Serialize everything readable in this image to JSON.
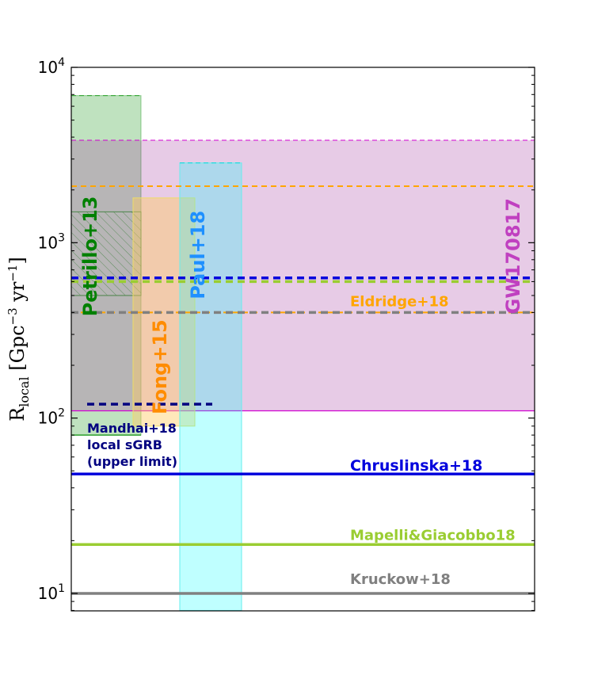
{
  "chart_data": {
    "type": "range-bands",
    "yscale": "log",
    "ylim": [
      8,
      10000
    ],
    "ylabel_parts": {
      "main": "R",
      "sub": "local",
      "rest": " [Gpc",
      "sup": "−3",
      "rest2": " yr",
      "sup2": "−1",
      "end": "]"
    },
    "y_ticks": [
      {
        "value": 10,
        "base": "10",
        "exp": "1"
      },
      {
        "value": 100,
        "base": "10",
        "exp": "2"
      },
      {
        "value": 1000,
        "base": "10",
        "exp": "3"
      },
      {
        "value": 10000,
        "base": "10",
        "exp": "4"
      }
    ],
    "gw_band": {
      "label": "GW170817",
      "low": 110,
      "high": 3840,
      "color": "#c040c0"
    },
    "columns": [
      {
        "label": "Petrillo+13",
        "low": 80,
        "high": 6900,
        "hatched_low": 500,
        "hatched_high": 1500,
        "color": "#2ca02c",
        "label_color": "#008000"
      },
      {
        "label": "Fong+15",
        "low": 90,
        "high": 1800,
        "color": "#ffcc66",
        "label_color": "#ff8c00"
      },
      {
        "label": "Paul+18",
        "low": 8,
        "high": 2850,
        "color": "#00ffff",
        "label_color": "#1e90ff"
      }
    ],
    "lines": [
      {
        "label": "Eldridge+18",
        "values": [
          400,
          2100
        ],
        "style": "dashed",
        "color": "#ffa500"
      },
      {
        "label": "Chruslinska+18",
        "value": 48,
        "style": "solid",
        "color": "#0000dd",
        "extra_dashed": 630
      },
      {
        "label": "Mapelli&Giacobbo18",
        "value": 19,
        "style": "solid",
        "color": "#9acd32",
        "extra_dashed": 600
      },
      {
        "label": "Kruckow+18",
        "value": 10,
        "style": "solid",
        "color": "#808080",
        "extra_dashed": 400
      }
    ],
    "mandhai": {
      "label_lines": [
        "Mandhai+18",
        "local sGRB",
        "(upper limit)"
      ],
      "value": 120,
      "color": "#000080"
    }
  }
}
